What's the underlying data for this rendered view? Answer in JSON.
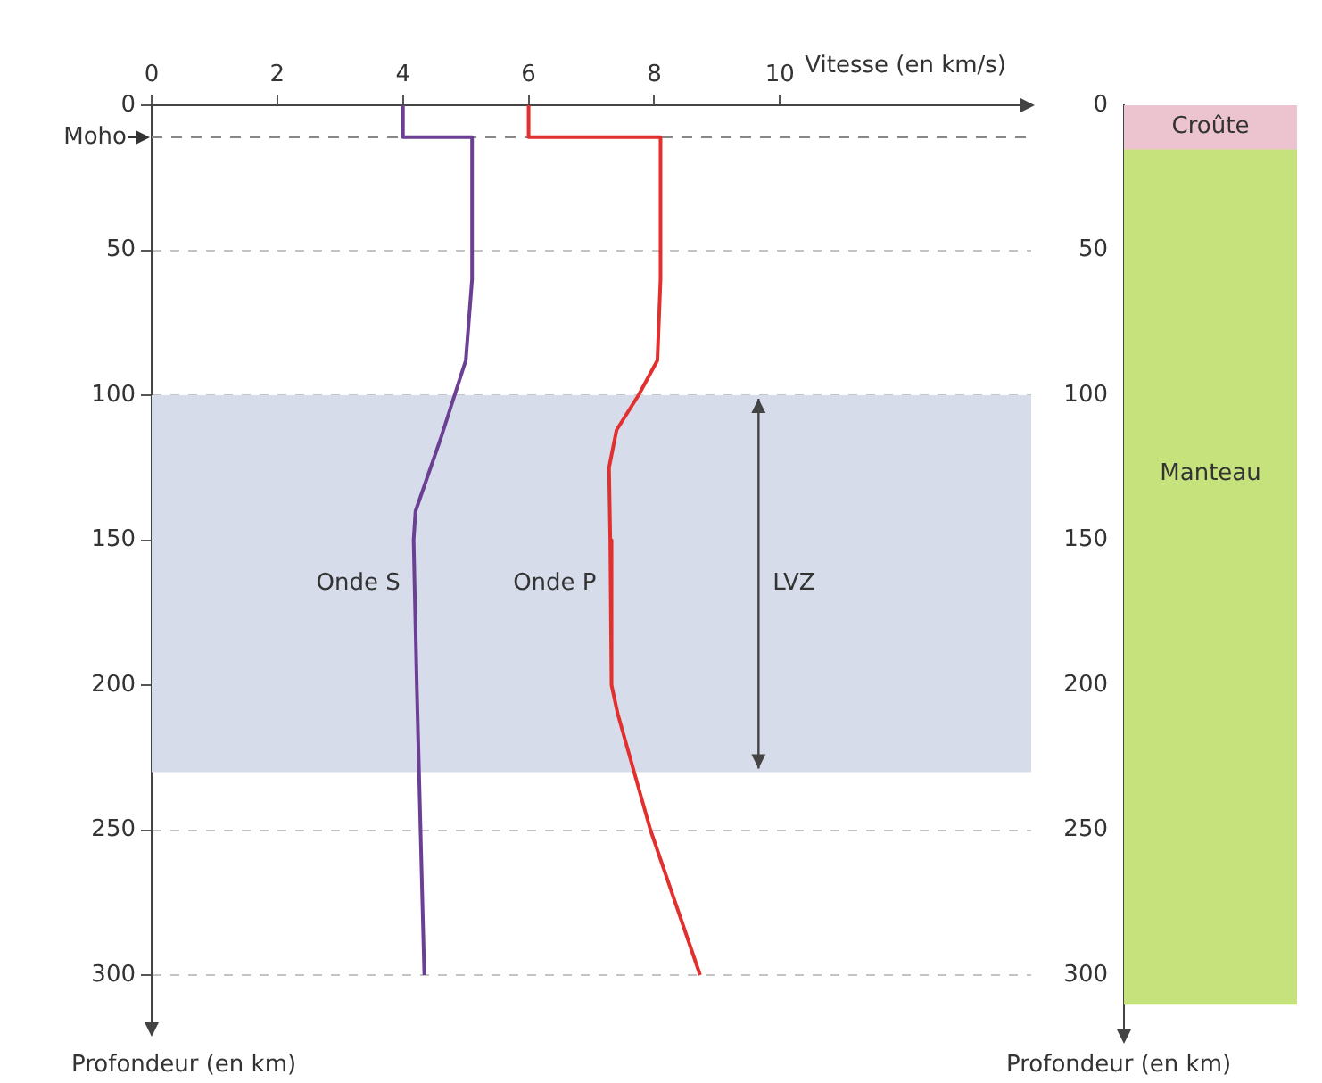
{
  "chart_data": [
    {
      "type": "line",
      "xlabel": "Vitesse (en km/s)",
      "ylabel": "Profondeur (en km)",
      "xlim": [
        0,
        14
      ],
      "xticks": [
        0,
        2,
        4,
        6,
        8,
        10
      ],
      "ylim": [
        320,
        0
      ],
      "yticks": [
        0,
        50,
        100,
        150,
        200,
        250,
        300
      ],
      "grid": "y",
      "legend": false,
      "marker": "none",
      "line_style": "solid",
      "series": [
        {
          "name": "Onde S",
          "color": "#6b3f93",
          "x": [
            4,
            4,
            5.1,
            5.1,
            5.0,
            4.6,
            4.2,
            4.17,
            4.22,
            4.28,
            4.34
          ],
          "values": [
            0,
            11,
            11,
            60,
            88,
            115,
            140,
            150,
            200,
            250,
            300
          ]
        },
        {
          "name": "Onde P",
          "color": "#e2302f",
          "x": [
            6,
            6,
            8.1,
            8.1,
            8.05,
            7.75,
            7.4,
            7.28,
            7.3,
            7.32,
            7.42,
            7.94,
            8.73
          ],
          "values": [
            0,
            11,
            11,
            60,
            88,
            100,
            112,
            125,
            150,
            200,
            210,
            250,
            300
          ]
        }
      ],
      "ref_lines": [
        {
          "axis": "y",
          "value": 11,
          "label": "Moho",
          "color": "#888888",
          "line_style": "dashed"
        }
      ],
      "bands": [
        {
          "axis": "y",
          "from": 100,
          "to": 230,
          "label": "LVZ",
          "color": "#d6dcea"
        }
      ]
    },
    {
      "type": "bar",
      "ylabel": "Profondeur (en km)",
      "categories": [
        null
      ],
      "ylim": [
        320,
        0
      ],
      "yticks": [
        0,
        50,
        100,
        150,
        200,
        250,
        300
      ],
      "tick_labels": "y",
      "grid": false,
      "legend": false,
      "series": [
        {
          "name": "Croûte",
          "color": "#ecc4d0",
          "base": [
            0
          ],
          "values": [
            15
          ]
        },
        {
          "name": "Manteau",
          "color": "#c6e27c",
          "base": [
            15
          ],
          "values": [
            295
          ]
        }
      ]
    }
  ]
}
